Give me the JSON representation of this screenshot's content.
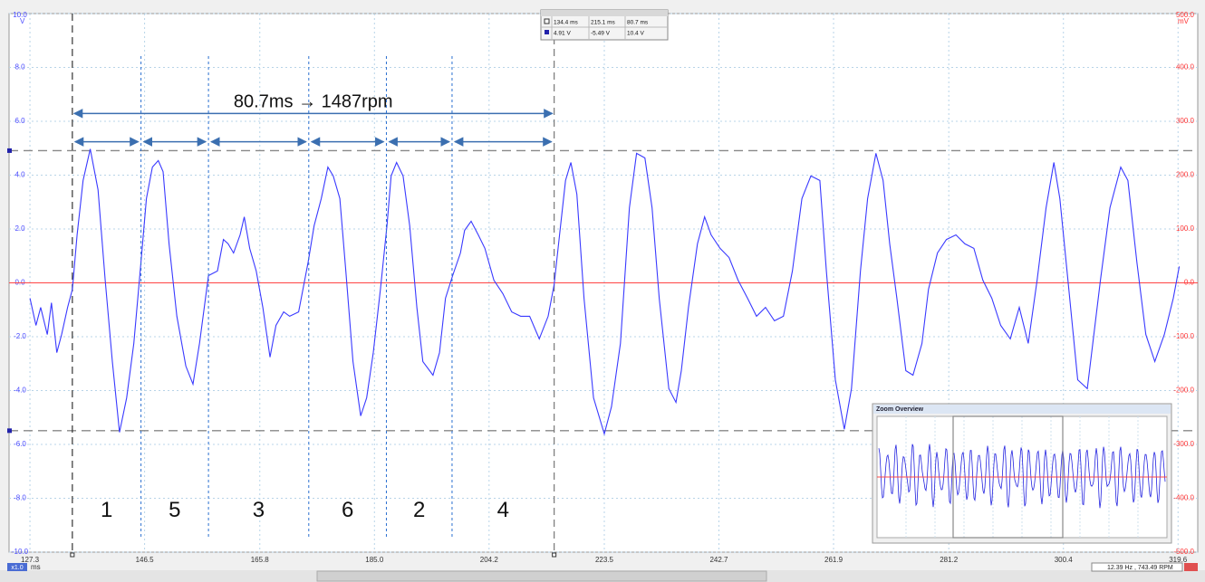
{
  "chart_data": {
    "type": "line",
    "y_unit": "V",
    "y2_unit": "mV",
    "x_unit": "ms",
    "xlim": [
      123.8,
      322.9
    ],
    "ylim": [
      -10,
      10
    ],
    "y2lim": [
      -500,
      500
    ],
    "grid": true,
    "xticks": [
      {
        "value": 127.3,
        "label": "127.3"
      },
      {
        "value": 146.5,
        "label": "146.5"
      },
      {
        "value": 165.8,
        "label": "165.8"
      },
      {
        "value": 185.0,
        "label": "185.0"
      },
      {
        "value": 204.2,
        "label": "204.2"
      },
      {
        "value": 223.5,
        "label": "223.5"
      },
      {
        "value": 242.7,
        "label": "242.7"
      },
      {
        "value": 261.9,
        "label": "261.9"
      },
      {
        "value": 281.2,
        "label": "281.2"
      },
      {
        "value": 300.4,
        "label": "300.4"
      },
      {
        "value": 319.6,
        "label": "319.6"
      }
    ],
    "yticks": [
      {
        "value": 10,
        "label": "10.0"
      },
      {
        "value": 8,
        "label": "8.0"
      },
      {
        "value": 6,
        "label": "6.0"
      },
      {
        "value": 4,
        "label": "4.0"
      },
      {
        "value": 2,
        "label": "2.0"
      },
      {
        "value": 0,
        "label": "0.0"
      },
      {
        "value": -2,
        "label": "-2.0"
      },
      {
        "value": -4,
        "label": "-4.0"
      },
      {
        "value": -6,
        "label": "-6.0"
      },
      {
        "value": -8,
        "label": "-8.0"
      },
      {
        "value": -10,
        "label": "-10.0"
      }
    ],
    "y2ticks": [
      {
        "value": 500,
        "label": "500.0"
      },
      {
        "value": 400,
        "label": "400.0"
      },
      {
        "value": 300,
        "label": "300.0"
      },
      {
        "value": 200,
        "label": "200.0"
      },
      {
        "value": 100,
        "label": "100.0"
      },
      {
        "value": 0,
        "label": "0.0"
      },
      {
        "value": -100,
        "label": "-100.0"
      },
      {
        "value": -200,
        "label": "-200.0"
      },
      {
        "value": -300,
        "label": "-300.0"
      },
      {
        "value": -400,
        "label": "-400.0"
      },
      {
        "value": -500,
        "label": "-500.0"
      }
    ],
    "series": [
      {
        "color": "#3a3aff",
        "x": [
          127.3,
          128.3,
          129.1,
          130.2,
          130.9,
          131.8,
          132.6,
          133.6,
          134.4,
          135.2,
          136.2,
          137.4,
          138.7,
          139.9,
          141.1,
          142.3,
          143.5,
          144.7,
          145.9,
          146.8,
          147.8,
          148.8,
          149.6,
          150.6,
          151.9,
          153.4,
          154.6,
          155.7,
          157.2,
          158.7,
          159.7,
          160.5,
          161.4,
          162.5,
          163.2,
          164.1,
          165.2,
          166.3,
          167.5,
          168.5,
          169.8,
          170.8,
          172.3,
          173.9,
          174.9,
          176.1,
          177.2,
          178.1,
          179.2,
          180.2,
          181.4,
          182.7,
          183.7,
          184.8,
          186.0,
          187.1,
          187.8,
          188.7,
          189.8,
          190.9,
          192.1,
          193.1,
          194.8,
          195.9,
          196.9,
          198.1,
          199.4,
          200.1,
          201.2,
          202.4,
          203.5,
          205.0,
          206.5,
          208.0,
          209.5,
          211.0,
          212.6,
          214.1,
          215.1,
          216.0,
          217.0,
          217.9,
          218.9,
          220.1,
          221.7,
          223.5,
          224.7,
          226.2,
          227.7,
          228.9,
          230.3,
          231.5,
          232.7,
          234.3,
          235.5,
          236.4,
          237.6,
          239.1,
          240.3,
          241.4,
          242.9,
          244.4,
          245.9,
          247.5,
          249.0,
          250.5,
          252.0,
          253.5,
          255.0,
          256.6,
          258.1,
          259.6,
          260.7,
          262.2,
          263.7,
          264.9,
          266.4,
          267.6,
          269.0,
          270.2,
          271.3,
          272.5,
          274.0,
          275.2,
          276.7,
          277.8,
          279.3,
          280.8,
          282.4,
          283.9,
          285.4,
          286.9,
          288.4,
          289.9,
          291.5,
          293.0,
          294.5,
          296.0,
          297.5,
          298.8,
          299.8,
          301.3,
          302.8,
          304.4,
          306.6,
          308.2,
          310.0,
          311.2,
          312.7,
          314.2,
          315.7,
          317.3,
          318.8,
          319.8
        ],
        "values": [
          -0.57,
          -1.58,
          -0.91,
          -1.92,
          -0.74,
          -2.59,
          -1.92,
          -0.91,
          -0.24,
          1.78,
          3.8,
          4.97,
          3.46,
          0.1,
          -2.92,
          -5.55,
          -4.27,
          -2.25,
          0.77,
          3.13,
          4.3,
          4.54,
          4.13,
          1.45,
          -1.24,
          -3.09,
          -3.76,
          -2.25,
          0.27,
          0.44,
          1.61,
          1.45,
          1.11,
          1.78,
          2.45,
          1.28,
          0.44,
          -0.91,
          -2.76,
          -1.58,
          -1.08,
          -1.24,
          -1.08,
          0.77,
          2.12,
          3.13,
          4.3,
          3.97,
          3.13,
          0.44,
          -2.92,
          -4.94,
          -4.27,
          -2.59,
          -0.24,
          2.12,
          3.97,
          4.47,
          3.97,
          2.12,
          -0.91,
          -2.92,
          -3.43,
          -2.59,
          -0.57,
          0.27,
          1.11,
          1.95,
          2.29,
          1.78,
          1.28,
          0.1,
          -0.4,
          -1.08,
          -1.24,
          -1.24,
          -2.08,
          -1.24,
          -0.07,
          1.78,
          3.8,
          4.47,
          3.29,
          -0.57,
          -4.27,
          -5.61,
          -4.6,
          -2.25,
          2.79,
          4.81,
          4.64,
          2.79,
          -0.57,
          -3.93,
          -4.44,
          -3.26,
          -0.91,
          1.45,
          2.45,
          1.78,
          1.28,
          0.94,
          0.1,
          -0.57,
          -1.24,
          -0.91,
          -1.41,
          -1.24,
          0.44,
          3.13,
          3.97,
          3.8,
          0.44,
          -3.6,
          -5.44,
          -3.93,
          0.44,
          3.13,
          4.81,
          3.8,
          1.45,
          -0.57,
          -3.26,
          -3.43,
          -2.25,
          -0.24,
          1.11,
          1.61,
          1.78,
          1.45,
          1.28,
          0.1,
          -0.57,
          -1.58,
          -2.08,
          -0.91,
          -2.25,
          0.1,
          2.79,
          4.47,
          3.13,
          -0.24,
          -3.6,
          -3.93,
          0.1,
          2.79,
          4.3,
          3.8,
          0.77,
          -1.92,
          -2.92,
          -1.92,
          -0.57,
          0.61
        ]
      },
      {
        "color": "#ff4444",
        "axis": "y2",
        "x": [
          123.8,
          322.9
        ],
        "values": [
          0,
          0
        ]
      }
    ],
    "cursors": {
      "x": [
        134.4,
        215.1
      ],
      "y": [
        4.91,
        -5.49
      ]
    },
    "annotations": {
      "period": {
        "text": "80.7ms → 1487rpm",
        "x": [
          134.4,
          215.1
        ],
        "y": 6.29
      },
      "cylinders": {
        "labels": [
          "1",
          "5",
          "3",
          "6",
          "2",
          "4"
        ],
        "edges": [
          134.4,
          145.9,
          157.2,
          174.0,
          187.0,
          198.0,
          215.1
        ],
        "arrow_y": 5.24,
        "label_y": -8.47
      }
    }
  },
  "cursor_table": {
    "rows": [
      [
        "134.4 ms",
        "215.1 ms",
        "80.7 ms"
      ],
      [
        "4.91 V",
        "-5.49 V",
        "10.4 V"
      ]
    ]
  },
  "zoom_overview": {
    "title": "Zoom Overview"
  },
  "status": "12.39 Hz , 743.49 RPM",
  "scale_button": "x1.0"
}
